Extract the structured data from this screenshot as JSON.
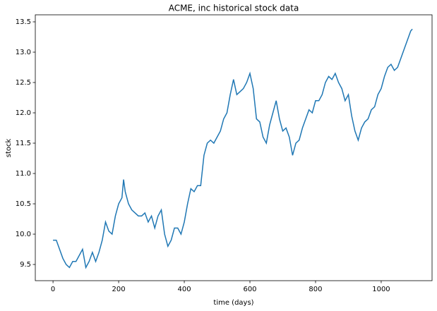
{
  "chart_data": {
    "type": "line",
    "title": "ACME, inc historical stock data",
    "x_label": "time (days)",
    "y_label": "stock",
    "x": [
      0,
      10,
      20,
      30,
      40,
      50,
      60,
      70,
      80,
      90,
      100,
      110,
      120,
      130,
      140,
      150,
      160,
      170,
      180,
      190,
      200,
      210,
      215,
      220,
      230,
      240,
      250,
      260,
      270,
      280,
      290,
      300,
      310,
      320,
      330,
      340,
      350,
      360,
      370,
      380,
      390,
      400,
      410,
      420,
      430,
      440,
      450,
      460,
      470,
      480,
      490,
      500,
      510,
      520,
      530,
      540,
      550,
      560,
      570,
      580,
      590,
      600,
      610,
      620,
      630,
      640,
      650,
      660,
      670,
      680,
      690,
      700,
      710,
      720,
      730,
      740,
      750,
      760,
      770,
      780,
      790,
      800,
      810,
      820,
      830,
      840,
      850,
      860,
      870,
      880,
      890,
      900,
      910,
      920,
      930,
      940,
      950,
      960,
      970,
      980,
      990,
      1000,
      1010,
      1020,
      1030,
      1040,
      1050,
      1060,
      1070,
      1080,
      1090,
      1095
    ],
    "series": [
      {
        "color": "#1f77b4",
        "values": [
          9.9,
          9.9,
          9.75,
          9.6,
          9.5,
          9.45,
          9.55,
          9.55,
          9.65,
          9.75,
          9.45,
          9.55,
          9.7,
          9.55,
          9.7,
          9.9,
          10.2,
          10.05,
          10.0,
          10.3,
          10.5,
          10.6,
          10.9,
          10.7,
          10.5,
          10.4,
          10.35,
          10.3,
          10.3,
          10.35,
          10.2,
          10.3,
          10.1,
          10.3,
          10.4,
          10.0,
          9.8,
          9.9,
          10.1,
          10.1,
          10.0,
          10.2,
          10.5,
          10.75,
          10.7,
          10.8,
          10.8,
          11.3,
          11.5,
          11.55,
          11.5,
          11.6,
          11.7,
          11.9,
          12.0,
          12.3,
          12.55,
          12.3,
          12.35,
          12.4,
          12.5,
          12.65,
          12.4,
          11.9,
          11.85,
          11.6,
          11.5,
          11.8,
          12.0,
          12.2,
          11.9,
          11.7,
          11.75,
          11.6,
          11.3,
          11.5,
          11.55,
          11.75,
          11.9,
          12.05,
          12.0,
          12.2,
          12.2,
          12.3,
          12.5,
          12.6,
          12.55,
          12.65,
          12.5,
          12.4,
          12.2,
          12.3,
          11.95,
          11.7,
          11.55,
          11.75,
          11.85,
          11.9,
          12.05,
          12.1,
          12.3,
          12.4,
          12.6,
          12.75,
          12.8,
          12.7,
          12.75,
          12.9,
          13.05,
          13.2,
          13.35,
          13.38
        ]
      }
    ],
    "xlim": [
      -54,
      1155
    ],
    "ylim": [
      9.233,
      13.616
    ],
    "xticks": [
      0,
      200,
      400,
      600,
      800,
      1000
    ],
    "yticks": [
      9.5,
      {
        "value": 10,
        "label": "10.0"
      },
      10.5,
      {
        "value": 11,
        "label": "11.0"
      },
      11.5,
      {
        "value": 12,
        "label": "12.0"
      },
      12.5,
      {
        "value": 13,
        "label": "13.0"
      },
      13.5
    ],
    "grid": false
  }
}
